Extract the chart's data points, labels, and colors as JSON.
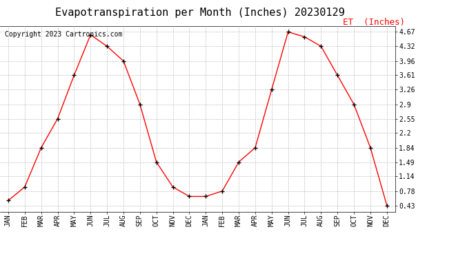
{
  "title": "Evapotranspiration per Month (Inches) 20230129",
  "copyright": "Copyright 2023 Cartronics.com",
  "legend_label": "ET  (Inches)",
  "x_labels": [
    "JAN",
    "FEB",
    "MAR",
    "APR",
    "MAY",
    "JUN",
    "JUL",
    "AUG",
    "SEP",
    "OCT",
    "NOV",
    "DEC",
    "JAN",
    "FEB",
    "MAR",
    "APR",
    "MAY",
    "JUN",
    "JUL",
    "AUG",
    "SEP",
    "OCT",
    "NOV",
    "DEC"
  ],
  "y_values": [
    0.55,
    0.88,
    1.84,
    2.55,
    3.61,
    4.6,
    4.32,
    3.96,
    2.9,
    1.49,
    0.88,
    0.65,
    0.65,
    0.78,
    1.49,
    1.84,
    3.26,
    4.67,
    4.55,
    4.32,
    3.61,
    2.9,
    1.84,
    0.43
  ],
  "yticks": [
    0.43,
    0.78,
    1.14,
    1.49,
    1.84,
    2.2,
    2.55,
    2.9,
    3.26,
    3.61,
    3.96,
    4.32,
    4.67
  ],
  "line_color": "red",
  "marker_color": "black",
  "background_color": "#ffffff",
  "grid_color": "#b0b0b0",
  "title_fontsize": 11,
  "copyright_fontsize": 7,
  "legend_fontsize": 9,
  "legend_color": "red",
  "tick_fontsize": 7,
  "ylim_min": 0.28,
  "ylim_max": 4.82
}
